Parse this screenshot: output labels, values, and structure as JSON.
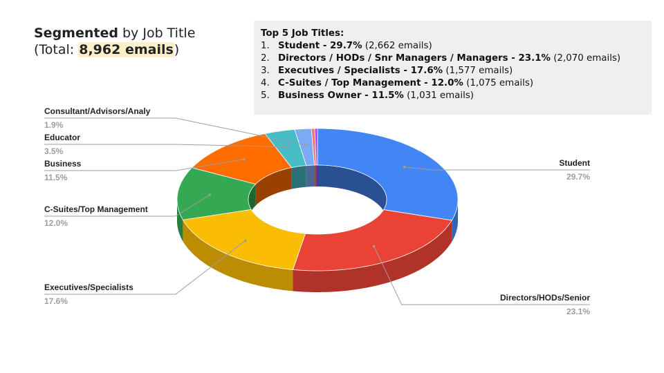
{
  "title": {
    "bold": "Segmented",
    "rest": " by Job Title",
    "total_prefix": "(Total: ",
    "total_value": "8,962 emails",
    "total_suffix": ")"
  },
  "top5": {
    "heading": "Top 5 Job Titles:",
    "items": [
      {
        "num": "1.",
        "bold": "Student - 29.7%",
        "rest": " (2,662 emails)"
      },
      {
        "num": "2.",
        "bold": "Directors / HODs / Snr Managers / Managers - 23.1%",
        "rest": " (2,070 emails)"
      },
      {
        "num": "3.",
        "bold": "Executives / Specialists - 17.6%",
        "rest": " (1,577 emails)"
      },
      {
        "num": "4.",
        "bold": "C-Suites / Top Management - 12.0%",
        "rest": " (1,075 emails)"
      },
      {
        "num": "5.",
        "bold": "Business Owner - 11.5%",
        "rest": " (1,031 emails)"
      }
    ]
  },
  "chart_data": {
    "type": "pie",
    "style": "3d-donut",
    "slices": [
      {
        "label": "Student",
        "pct_label": "29.7%",
        "value": 29.7,
        "color": "#4285f4"
      },
      {
        "label": "Directors/HODs/Senior",
        "pct_label": "23.1%",
        "value": 23.1,
        "color": "#ea4335"
      },
      {
        "label": "Executives/Specialists",
        "pct_label": "17.6%",
        "value": 17.6,
        "color": "#fbbc04"
      },
      {
        "label": "C-Suites/Top Management",
        "pct_label": "12.0%",
        "value": 12.0,
        "color": "#34a853"
      },
      {
        "label": "Business",
        "pct_label": "11.5%",
        "value": 11.5,
        "color": "#ff6d01"
      },
      {
        "label": "Educator",
        "pct_label": "3.5%",
        "value": 3.5,
        "color": "#46bdc6"
      },
      {
        "label": "Consultant/Advisors/Analy",
        "pct_label": "1.9%",
        "value": 1.9,
        "color": "#7baaf7"
      },
      {
        "label": "",
        "pct_label": "",
        "value": 0.4,
        "color": "#f07b72"
      },
      {
        "label": "",
        "pct_label": "",
        "value": 0.3,
        "color": "#a142f4"
      }
    ]
  }
}
